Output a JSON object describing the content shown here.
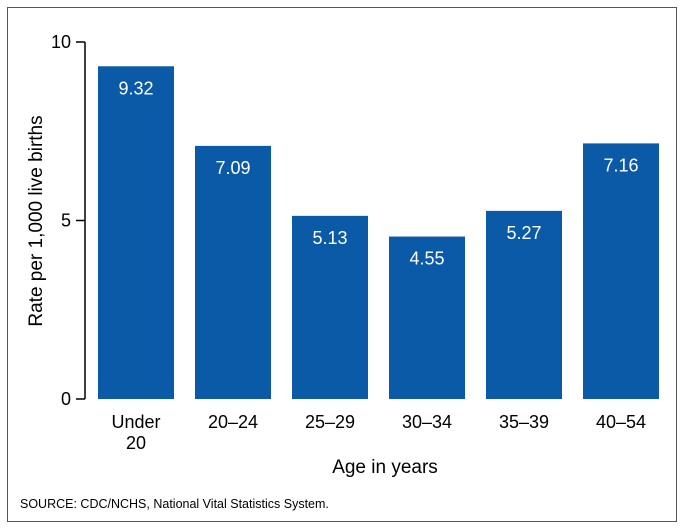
{
  "chart_data": {
    "type": "bar",
    "categories": [
      [
        "Under",
        "20"
      ],
      [
        "20–24"
      ],
      [
        "25–29"
      ],
      [
        "30–34"
      ],
      [
        "35–39"
      ],
      [
        "40–54"
      ]
    ],
    "values": [
      9.32,
      7.09,
      5.13,
      4.55,
      5.27,
      7.16
    ],
    "value_labels": [
      "9.32",
      "7.09",
      "5.13",
      "4.55",
      "5.27",
      "7.16"
    ],
    "xlabel": "Age in years",
    "ylabel": "Rate per 1,000 live births",
    "ylim": [
      0,
      10
    ],
    "yticks": [
      0,
      5,
      10
    ],
    "ytick_labels": [
      "0",
      "5",
      "10"
    ],
    "bar_color": "#0a5aa8",
    "grid": false,
    "legend": "none"
  },
  "source_note": "SOURCE: CDC/NCHS, National Vital Statistics System."
}
